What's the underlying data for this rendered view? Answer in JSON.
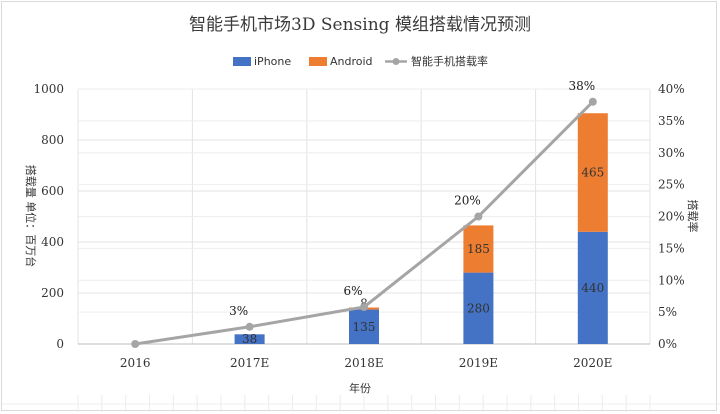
{
  "chart_data": {
    "type": "bar",
    "stacked": true,
    "title": "智能手机市场3D Sensing 模组搭载情况预测",
    "xlabel": "年份",
    "ylabel": "搭载量 单位：百万台",
    "y2label": "搭载率",
    "categories": [
      "2016",
      "2017E",
      "2018E",
      "2019E",
      "2020E"
    ],
    "ylim": [
      0,
      1000
    ],
    "yticks": [
      "0",
      "200",
      "400",
      "600",
      "800",
      "1000"
    ],
    "y2lim": [
      0,
      0.4
    ],
    "y2ticks": [
      "0%",
      "5%",
      "10%",
      "15%",
      "20%",
      "25%",
      "30%",
      "35%",
      "40%"
    ],
    "grid": true,
    "legend_position": "top-center",
    "series": [
      {
        "name": "iPhone",
        "type": "bar",
        "color": "#4472c4",
        "values": [
          0,
          38,
          135,
          280,
          440
        ],
        "labels": [
          "",
          "38",
          "135",
          "280",
          "440"
        ]
      },
      {
        "name": "Android",
        "type": "bar",
        "color": "#ed7d31",
        "values": [
          0,
          0,
          8,
          185,
          465
        ],
        "labels": [
          "",
          "",
          "8",
          "185",
          "465"
        ]
      },
      {
        "name": "智能手机搭载率",
        "type": "line",
        "axis": "right",
        "color": "#a5a5a5",
        "values": [
          0,
          0.027,
          0.058,
          0.2,
          0.38
        ],
        "labels": [
          "",
          "3%",
          "6%",
          "20%",
          "38%"
        ]
      }
    ]
  }
}
